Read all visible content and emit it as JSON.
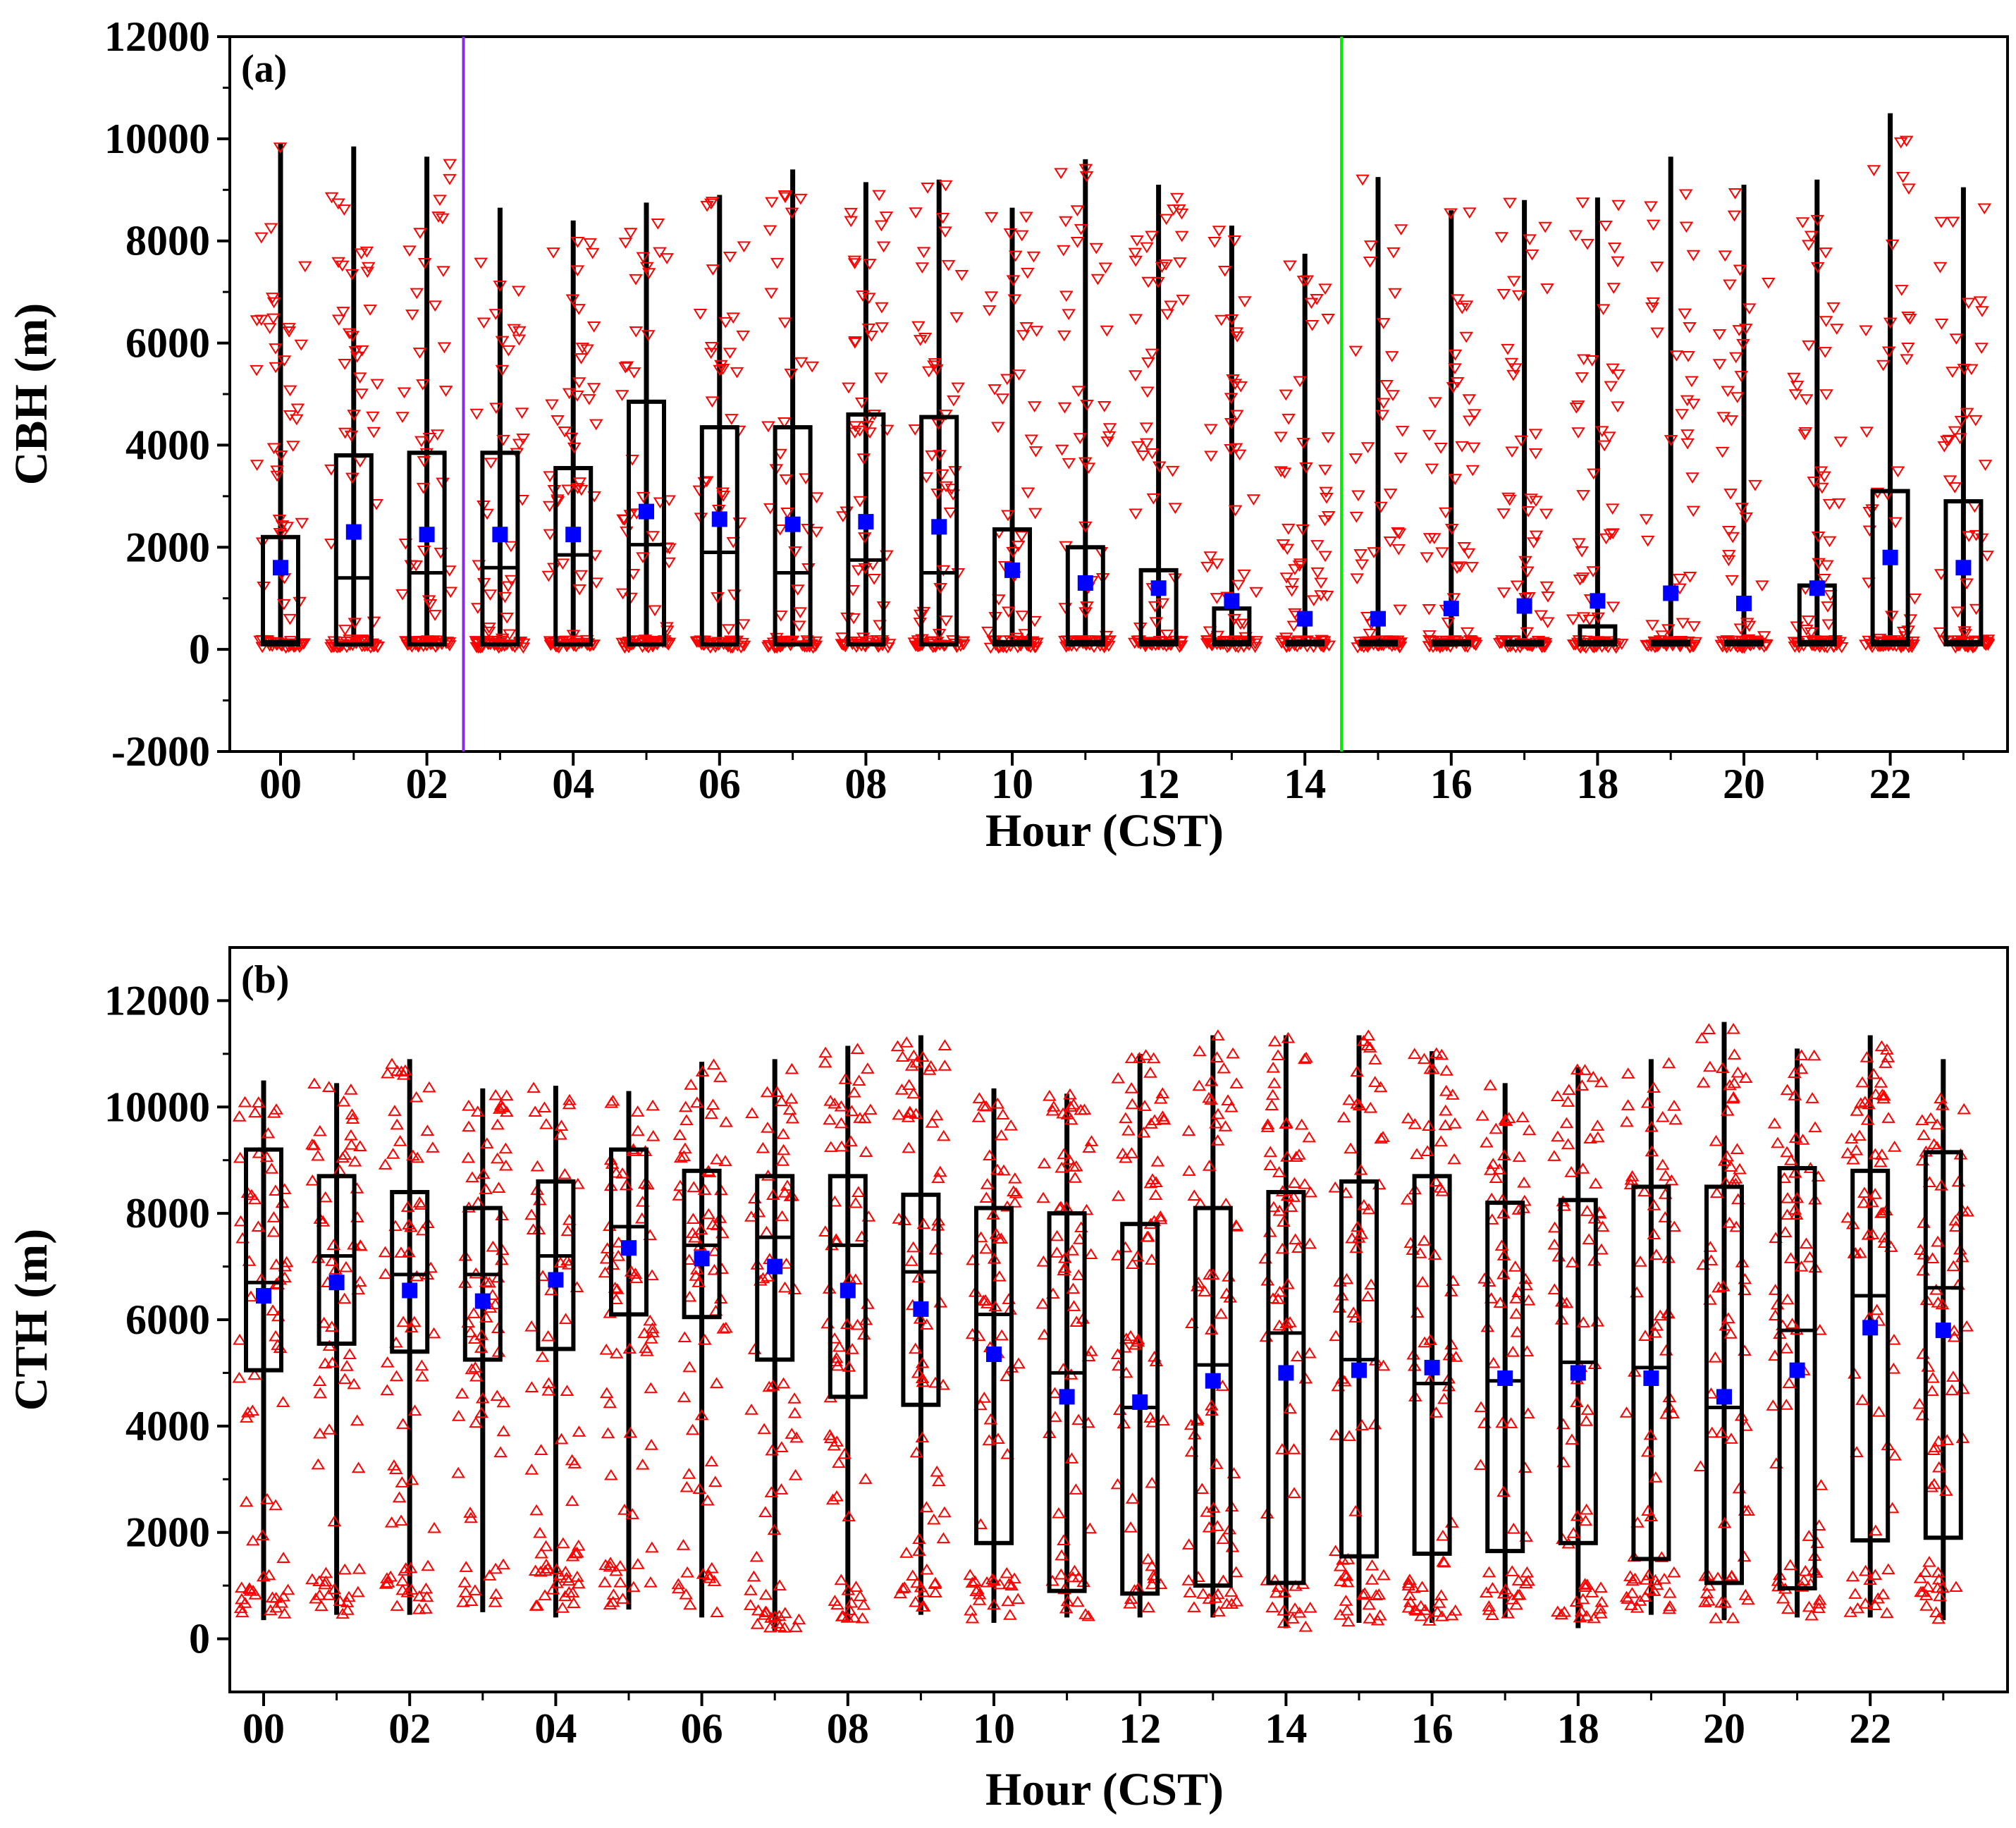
{
  "figure": {
    "colors": {
      "box": "#000000",
      "points": "#ff0000",
      "mean": "#0000ff",
      "vline_a_left": "#8a2be2",
      "vline_a_right": "#00ee00"
    }
  },
  "chart_data": [
    {
      "type": "box",
      "panel_label": "(a)",
      "xlabel": "Hour (CST)",
      "ylabel": "CBH (m)",
      "ylim": [
        -2000,
        12000
      ],
      "yticks": [
        -2000,
        0,
        2000,
        4000,
        6000,
        8000,
        10000,
        12000
      ],
      "ytick_labels": [
        "-2000",
        "0",
        "2000",
        "4000",
        "6000",
        "8000",
        "10000",
        "12000"
      ],
      "xtick_labels": [
        "00",
        "02",
        "04",
        "06",
        "08",
        "10",
        "12",
        "14",
        "16",
        "18",
        "20",
        "22"
      ],
      "xtick_hours": [
        0,
        2,
        4,
        6,
        8,
        10,
        12,
        14,
        16,
        18,
        20,
        22
      ],
      "point_marker": "triangle-down",
      "vlines_hours": [
        2.5,
        14.5
      ],
      "vline_colors": [
        "#8a2be2",
        "#00ee00"
      ],
      "hours": [
        0,
        1,
        2,
        3,
        4,
        5,
        6,
        7,
        8,
        9,
        10,
        11,
        12,
        13,
        14,
        15,
        16,
        17,
        18,
        19,
        20,
        21,
        22,
        23
      ],
      "min": [
        50,
        50,
        50,
        50,
        50,
        50,
        50,
        50,
        50,
        50,
        50,
        50,
        50,
        50,
        50,
        50,
        50,
        50,
        50,
        50,
        50,
        50,
        50,
        50
      ],
      "q1": [
        100,
        100,
        100,
        100,
        100,
        100,
        100,
        100,
        100,
        100,
        100,
        100,
        100,
        100,
        100,
        100,
        100,
        100,
        100,
        100,
        100,
        100,
        100,
        100
      ],
      "median": [
        150,
        1400,
        1500,
        1600,
        1850,
        2050,
        1900,
        1500,
        1750,
        1500,
        150,
        150,
        150,
        150,
        150,
        150,
        150,
        150,
        150,
        150,
        150,
        150,
        150,
        150
      ],
      "q3": [
        2200,
        3800,
        3850,
        3850,
        3550,
        4850,
        4350,
        4350,
        4600,
        4550,
        2350,
        2000,
        1550,
        800,
        150,
        150,
        150,
        150,
        450,
        150,
        150,
        1250,
        3100,
        2900
      ],
      "max": [
        9900,
        9850,
        9650,
        8650,
        8400,
        8750,
        8900,
        9400,
        9150,
        9200,
        8650,
        9600,
        9100,
        8300,
        7750,
        9250,
        8600,
        8800,
        8850,
        9650,
        9100,
        9200,
        10500,
        9050
      ],
      "mean": [
        1600,
        2300,
        2250,
        2250,
        2250,
        2700,
        2550,
        2450,
        2500,
        2400,
        1550,
        1300,
        1200,
        950,
        600,
        600,
        800,
        850,
        950,
        1100,
        900,
        1200,
        1800,
        1600
      ]
    },
    {
      "type": "box",
      "panel_label": "(b)",
      "xlabel": "Hour (CST)",
      "ylabel": "CTH (m)",
      "ylim": [
        -1000,
        13000
      ],
      "yticks": [
        0,
        2000,
        4000,
        6000,
        8000,
        10000,
        12000
      ],
      "ytick_labels": [
        "0",
        "2000",
        "4000",
        "6000",
        "8000",
        "10000",
        "12000"
      ],
      "xtick_labels": [
        "00",
        "02",
        "04",
        "06",
        "08",
        "10",
        "12",
        "14",
        "16",
        "18",
        "20",
        "22"
      ],
      "xtick_hours": [
        0,
        2,
        4,
        6,
        8,
        10,
        12,
        14,
        16,
        18,
        20,
        22
      ],
      "point_marker": "triangle-up",
      "hours": [
        0,
        1,
        2,
        3,
        4,
        5,
        6,
        7,
        8,
        9,
        10,
        11,
        12,
        13,
        14,
        15,
        16,
        17,
        18,
        19,
        20,
        21,
        22,
        23
      ],
      "min": [
        350,
        450,
        450,
        500,
        400,
        550,
        400,
        150,
        350,
        450,
        300,
        400,
        400,
        400,
        200,
        300,
        300,
        400,
        200,
        450,
        350,
        400,
        400,
        350
      ],
      "q1": [
        5050,
        5550,
        5400,
        5250,
        5450,
        6100,
        6050,
        5250,
        4550,
        4400,
        1800,
        900,
        850,
        1000,
        1050,
        1550,
        1600,
        1650,
        1800,
        1500,
        1050,
        950,
        1850,
        1900
      ],
      "median": [
        6700,
        7200,
        6850,
        6850,
        7200,
        7750,
        7400,
        7550,
        7400,
        6900,
        6100,
        5000,
        4350,
        5150,
        5750,
        5250,
        4800,
        4850,
        5200,
        5100,
        4350,
        5800,
        6450,
        6600
      ],
      "q3": [
        9200,
        8700,
        8400,
        8100,
        8600,
        9200,
        8800,
        8700,
        8700,
        8350,
        8100,
        8000,
        7800,
        8100,
        8400,
        8600,
        8700,
        8200,
        8250,
        8500,
        8500,
        8850,
        8800,
        9150
      ],
      "max": [
        10500,
        10450,
        10900,
        10350,
        10400,
        10300,
        10850,
        10900,
        11150,
        11350,
        10350,
        10250,
        11000,
        11350,
        11350,
        11350,
        11050,
        10450,
        10750,
        10900,
        11600,
        11100,
        11350,
        10900
      ],
      "mean": [
        6450,
        6700,
        6550,
        6350,
        6750,
        7350,
        7150,
        7000,
        6550,
        6200,
        5350,
        4550,
        4450,
        4850,
        5000,
        5050,
        5100,
        4900,
        5000,
        4900,
        4550,
        5050,
        5850,
        5800
      ]
    }
  ]
}
